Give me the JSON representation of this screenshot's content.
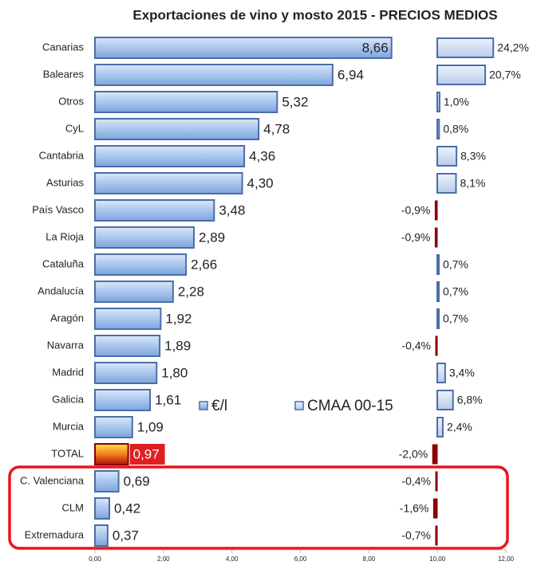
{
  "chart_data": {
    "type": "bar",
    "orientation": "horizontal",
    "title": "Exportaciones de vino y mosto 2015  - PRECIOS MEDIOS",
    "categories": [
      "Canarias",
      "Baleares",
      "Otros",
      "CyL",
      "Cantabria",
      "Asturias",
      "País Vasco",
      "La Rioja",
      "Cataluña",
      "Andalucía",
      "Aragón",
      "Navarra",
      "Madrid",
      "Galicia",
      "Murcia",
      "TOTAL",
      "C. Valenciana",
      "CLM",
      "Extremadura"
    ],
    "series": [
      {
        "name": "€/l",
        "color": "#a9c6ee",
        "border": "#4a6ea8",
        "values": [
          8.66,
          6.94,
          5.32,
          4.78,
          4.36,
          4.3,
          3.48,
          2.89,
          2.66,
          2.28,
          1.92,
          1.89,
          1.8,
          1.61,
          1.09,
          0.97,
          0.69,
          0.42,
          0.37
        ],
        "value_labels": [
          "8,66",
          "6,94",
          "5,32",
          "4,78",
          "4,36",
          "4,30",
          "3,48",
          "2,89",
          "2,66",
          "2,28",
          "1,92",
          "1,89",
          "1,80",
          "1,61",
          "1,09",
          "0,97",
          "0,69",
          "0,42",
          "0,37"
        ]
      },
      {
        "name": "CMAA 00-15",
        "color": "#c7d8f0",
        "border": "#4a6ea8",
        "negative_color": "#8b0000",
        "values": [
          24.2,
          20.7,
          1.0,
          0.8,
          8.3,
          8.1,
          -0.9,
          -0.9,
          0.7,
          0.7,
          0.7,
          -0.4,
          3.4,
          6.8,
          2.4,
          -2.0,
          -0.4,
          -1.6,
          -0.7
        ],
        "value_labels": [
          "24,2%",
          "20,7%",
          "1,0%",
          "0,8%",
          "8,3%",
          "8,1%",
          "-0,9%",
          "-0,9%",
          "0,7%",
          "0,7%",
          "0,7%",
          "-0,4%",
          "3,4%",
          "6,8%",
          "2,4%",
          "-2,0%",
          "-0,4%",
          "-1,6%",
          "-0,7%"
        ]
      }
    ],
    "highlight_index": 15,
    "highlight_color": "#e02020",
    "xlim": [
      0,
      12
    ],
    "xticks": [
      {
        "value": 0,
        "label": "0,00"
      },
      {
        "value": 2,
        "label": "2,00"
      },
      {
        "value": 4,
        "label": "4,00"
      },
      {
        "value": 6,
        "label": "6,00"
      },
      {
        "value": 8,
        "label": "8,00"
      },
      {
        "value": 10,
        "label": "10,00"
      },
      {
        "value": 12,
        "label": "12,00"
      }
    ]
  }
}
